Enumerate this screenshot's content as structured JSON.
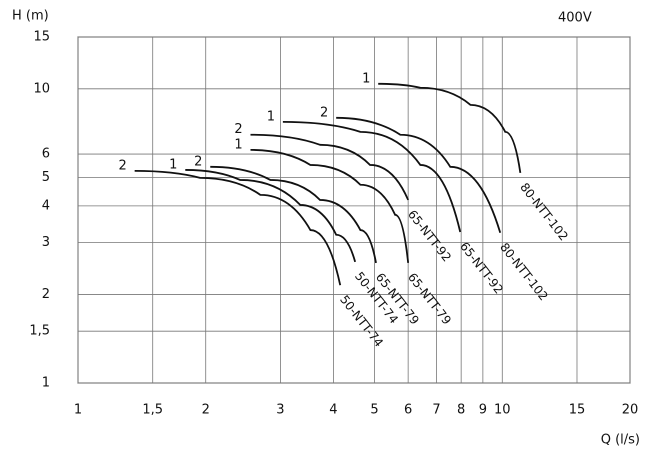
{
  "chart_data": {
    "type": "line",
    "y_label": "H (m)",
    "x_label": "Q (l/s)",
    "annotation": "400V",
    "x_scale": "log",
    "y_scale": "log",
    "grid": true,
    "color": "#111111",
    "xlim": [
      1,
      20
    ],
    "ylim": [
      1,
      15
    ],
    "xticks": [
      1,
      {
        "value": 1.5,
        "label": "1,5"
      },
      2,
      3,
      4,
      5,
      6,
      7,
      8,
      9,
      10,
      15,
      20
    ],
    "yticks": [
      1,
      {
        "value": 1.5,
        "label": "1,5"
      },
      2,
      3,
      4,
      5,
      6,
      10,
      15
    ],
    "series": [
      {
        "name": "50-NTT-74",
        "curve": "2",
        "x": [
          1.36,
          1.94,
          2.69,
          3.53,
          4.15
        ],
        "values": [
          5.26,
          4.98,
          4.36,
          3.31,
          2.15
        ]
      },
      {
        "name": "50-NTT-74",
        "curve": "1",
        "x": [
          1.79,
          2.41,
          3.34,
          4.06,
          4.5
        ],
        "values": [
          5.3,
          4.9,
          4.03,
          3.19,
          2.58
        ]
      },
      {
        "name": "65-NTT-79",
        "curve": "2",
        "x": [
          2.05,
          2.84,
          3.72,
          4.63,
          5.04
        ],
        "values": [
          5.43,
          4.9,
          4.19,
          3.31,
          2.56
        ]
      },
      {
        "name": "65-NTT-79",
        "curve": "1",
        "x": [
          2.55,
          3.53,
          4.63,
          5.59,
          6.0
        ],
        "values": [
          6.2,
          5.51,
          4.72,
          3.73,
          2.56
        ]
      },
      {
        "name": "65-NTT-92",
        "curve": "2",
        "x": [
          2.55,
          3.72,
          4.88,
          6.0
        ],
        "values": [
          6.98,
          6.45,
          5.51,
          4.19
        ]
      },
      {
        "name": "65-NTT-92",
        "curve": "1",
        "x": [
          3.04,
          4.63,
          6.41,
          7.96
        ],
        "values": [
          7.72,
          7.14,
          5.51,
          3.26
        ]
      },
      {
        "name": "80-NTT-102",
        "curve": "2",
        "x": [
          4.06,
          5.75,
          7.54,
          9.89
        ],
        "values": [
          7.97,
          6.98,
          5.43,
          3.24
        ]
      },
      {
        "name": "80-NTT-102",
        "curve": "1",
        "x": [
          5.1,
          6.41,
          8.41,
          10.16,
          11.03
        ],
        "values": [
          10.4,
          10.08,
          8.82,
          7.14,
          5.18
        ]
      }
    ]
  }
}
